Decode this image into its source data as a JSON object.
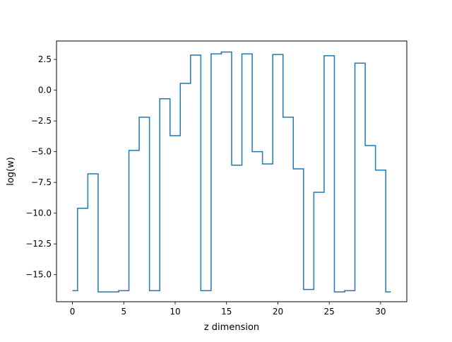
{
  "chart_data": {
    "type": "line",
    "style": "step",
    "xlabel": "z dimension",
    "ylabel": "log(w)",
    "xlim": [
      -1.55,
      32.55
    ],
    "ylim": [
      -17.2,
      4.0
    ],
    "xticks": [
      0,
      5,
      10,
      15,
      20,
      25,
      30
    ],
    "xtick_labels": [
      "0",
      "5",
      "10",
      "15",
      "20",
      "25",
      "30"
    ],
    "yticks": [
      2.5,
      0.0,
      -2.5,
      -5.0,
      -7.5,
      -10.0,
      -12.5,
      -15.0
    ],
    "ytick_labels": [
      "2.5",
      "0.0",
      "−2.5",
      "−5.0",
      "−7.5",
      "−10.0",
      "−12.5",
      "−15.0"
    ],
    "grid": false,
    "line_color": "#1f77b4",
    "series": [
      {
        "x": [
          0,
          1,
          2,
          3,
          4,
          5,
          6,
          7,
          8,
          9,
          10,
          11,
          12,
          13,
          14,
          15,
          16,
          17,
          18,
          19,
          20,
          21,
          22,
          23,
          24,
          25,
          26,
          27,
          28,
          29,
          30,
          31
        ],
        "values": [
          -16.3,
          -9.6,
          -6.8,
          -16.4,
          -16.4,
          -16.3,
          -4.9,
          -2.2,
          -16.3,
          -0.7,
          -3.7,
          0.55,
          2.85,
          -16.3,
          2.95,
          3.1,
          -6.1,
          2.95,
          -5.0,
          -6.0,
          2.9,
          -2.2,
          -6.4,
          -16.2,
          -8.3,
          2.8,
          -16.4,
          -16.3,
          2.2,
          -4.5,
          -6.5,
          -16.4
        ]
      }
    ]
  }
}
